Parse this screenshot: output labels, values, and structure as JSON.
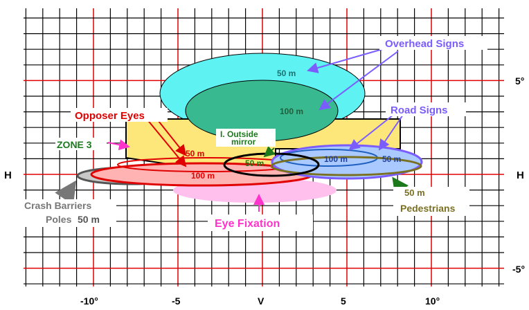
{
  "axes": {
    "x_ticks": [
      "-10°",
      "-5",
      "V",
      "5",
      "10°"
    ],
    "y_ticks": [
      "5°",
      "-5°"
    ],
    "h_left": "H",
    "h_right": "H"
  },
  "labels": {
    "overhead_signs": "Overhead  Signs",
    "overhead_50m": "50 m",
    "overhead_100m": "100 m",
    "road_signs": "Road Signs",
    "road_100m": "100 m",
    "road_50m": "50 m",
    "opposer_eyes": "Opposer Eyes",
    "opposer_50m": "50 m",
    "opposer_100m": "100 m",
    "zone3": "ZONE  3",
    "outside_mirror_line1": "I. Outside",
    "outside_mirror_line2": "mirror",
    "mirror_50m": "50 m",
    "crash_barriers_line1": "Crash Barriers",
    "crash_barriers_line2": "Poles",
    "crash_50m": "50 m",
    "eye_fixation": "Eye Fixation",
    "pedestrians_50m": "50 m",
    "pedestrians": "Pedestrians"
  },
  "colors": {
    "grid_black": "#000000",
    "grid_red": "#e00000",
    "overhead": "#5ff2f2",
    "overhead_inner": "#39b98f",
    "zone_yellow": "#fde77a",
    "road_signs": "#7b5cff",
    "road_fill": "#a9c9ff",
    "opposer": "#e00000",
    "opposer_fill": "#ffb3b3",
    "eye_fixation": "#ff33cc",
    "eye_fill": "#ffc0ee",
    "pedestrians": "#7a7022",
    "crash": "#777777",
    "zone_green": "#1c7a1c"
  }
}
